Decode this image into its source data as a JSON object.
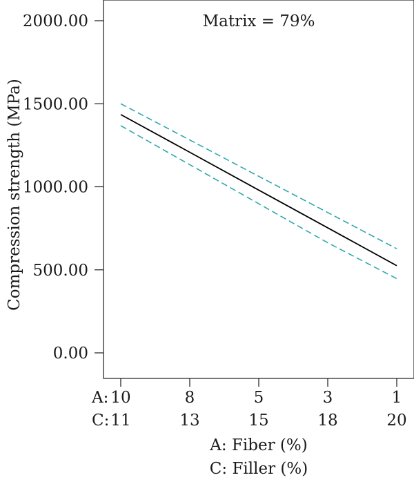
{
  "chart_data": {
    "type": "line",
    "title": "Matrix = 79%",
    "ylabel": "Compression strength (MPa)",
    "xlabels": [
      "A: Fiber (%)",
      "C: Filler (%)"
    ],
    "x_row_prefixes": [
      "A:",
      "C:"
    ],
    "x": [
      0,
      1,
      2,
      3,
      4
    ],
    "x_ticks_A": [
      "10",
      "8",
      "5",
      "3",
      "1"
    ],
    "x_ticks_C": [
      "11",
      "13",
      "15",
      "18",
      "20"
    ],
    "ylim": [
      0,
      2000
    ],
    "y_ticks": [
      0,
      500,
      1000,
      1500,
      2000
    ],
    "y_tick_labels": [
      "0.00",
      "500.00",
      "1000.00",
      "1500.00",
      "2000.00"
    ],
    "grid": false,
    "series": [
      {
        "role": "prediction",
        "style": "solid",
        "color": "#000000",
        "values": [
          1435,
          1208,
          980,
          753,
          525
        ]
      },
      {
        "role": "upper-bound",
        "style": "dashed",
        "color": "#2ea8b0",
        "values": [
          1500,
          1282,
          1063,
          845,
          627
        ]
      },
      {
        "role": "lower-bound",
        "style": "dashed",
        "color": "#2ea8b0",
        "values": [
          1368,
          1133,
          898,
          663,
          447
        ]
      }
    ]
  }
}
